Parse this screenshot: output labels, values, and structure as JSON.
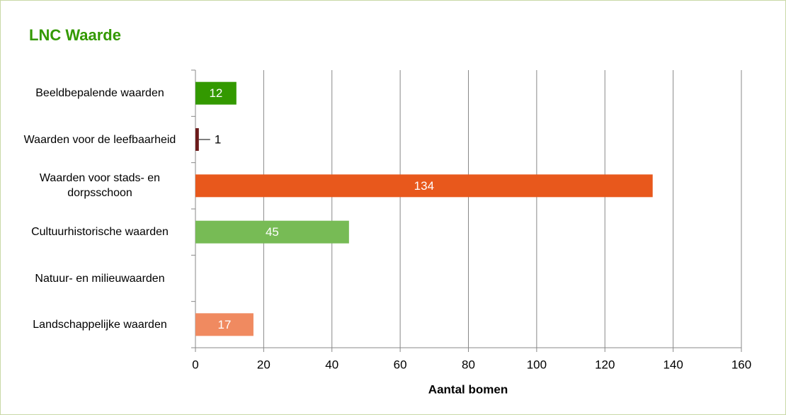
{
  "chart_data": {
    "type": "bar",
    "orientation": "horizontal",
    "title": "LNC Waarde",
    "categories": [
      "Beeldbepalende waarden",
      "Waarden voor de leefbaarheid",
      "Waarden voor stads- en dorpsschoon",
      "Cultuurhistorische waarden",
      "Natuur- en milieuwaarden",
      "Landschappelijke waarden"
    ],
    "values": [
      12,
      1,
      134,
      45,
      null,
      17
    ],
    "colors": [
      "#339900",
      "#6b1a1a",
      "#e8581c",
      "#77bb55",
      null,
      "#f08a60"
    ],
    "xlim": [
      0,
      160
    ],
    "xticks": [
      0,
      20,
      40,
      60,
      80,
      100,
      120,
      140,
      160
    ],
    "xlabel": "Aantal bomen",
    "grid": true
  }
}
